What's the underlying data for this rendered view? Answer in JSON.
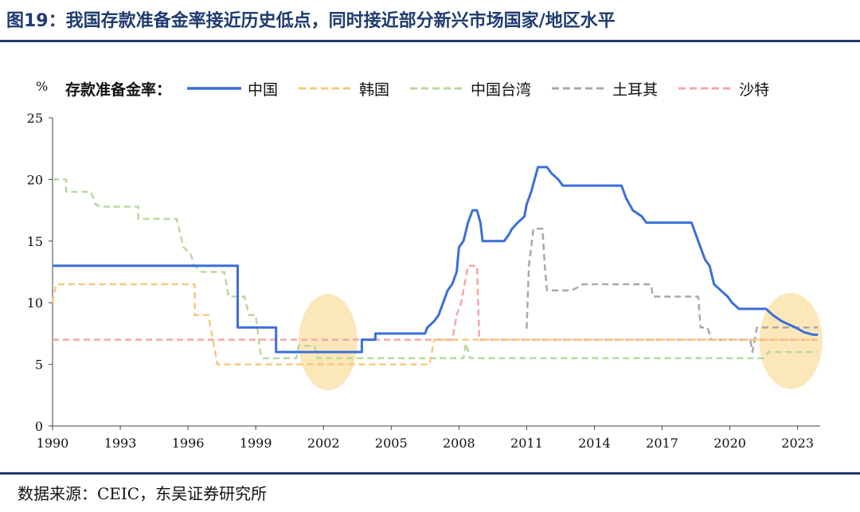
{
  "header": {
    "title": "图19：我国存款准备金率接近历史低点，同时接近部分新兴市场国家/地区水平"
  },
  "footer": {
    "source": "数据来源：CEIC，东吴证券研究所"
  },
  "chart_data": {
    "type": "line",
    "ylabel": "%",
    "legend_prefix": "存款准备金率：",
    "legend_placement": "top",
    "xlim": [
      1990,
      2024
    ],
    "ylim": [
      0,
      25
    ],
    "x_ticks": [
      "1990",
      "1993",
      "1996",
      "1999",
      "2002",
      "2005",
      "2008",
      "2011",
      "2014",
      "2017",
      "2020",
      "2023"
    ],
    "y_ticks": [
      "0",
      "5",
      "10",
      "15",
      "20",
      "25"
    ],
    "grid": false,
    "highlights": [
      {
        "x_center": 2002.2,
        "y_center": 6.8,
        "x_radius": 1.3,
        "y_radius": 3.9,
        "color": "#fbe3ad"
      },
      {
        "x_center": 2022.7,
        "y_center": 6.9,
        "x_radius": 1.4,
        "y_radius": 3.9,
        "color": "#fbe3ad"
      }
    ],
    "series": [
      {
        "name": "中国",
        "color": "#3a6fdc",
        "style": "solid",
        "points": [
          [
            1990.0,
            13.0
          ],
          [
            1998.2,
            13.0
          ],
          [
            1998.2,
            8.0
          ],
          [
            1999.9,
            8.0
          ],
          [
            1999.9,
            6.0
          ],
          [
            2003.7,
            6.0
          ],
          [
            2003.7,
            7.0
          ],
          [
            2004.3,
            7.0
          ],
          [
            2004.3,
            7.5
          ],
          [
            2006.5,
            7.5
          ],
          [
            2006.6,
            8.0
          ],
          [
            2006.9,
            8.5
          ],
          [
            2007.1,
            9.0
          ],
          [
            2007.3,
            10.0
          ],
          [
            2007.5,
            11.0
          ],
          [
            2007.7,
            11.5
          ],
          [
            2007.9,
            12.5
          ],
          [
            2008.0,
            14.5
          ],
          [
            2008.2,
            15.0
          ],
          [
            2008.4,
            16.5
          ],
          [
            2008.6,
            17.5
          ],
          [
            2008.8,
            17.5
          ],
          [
            2008.95,
            16.5
          ],
          [
            2009.05,
            15.0
          ],
          [
            2010.0,
            15.0
          ],
          [
            2010.2,
            15.5
          ],
          [
            2010.35,
            16.0
          ],
          [
            2010.6,
            16.5
          ],
          [
            2010.9,
            17.0
          ],
          [
            2011.0,
            18.0
          ],
          [
            2011.2,
            19.0
          ],
          [
            2011.35,
            20.0
          ],
          [
            2011.5,
            21.0
          ],
          [
            2011.9,
            21.0
          ],
          [
            2012.1,
            20.5
          ],
          [
            2012.4,
            20.0
          ],
          [
            2012.6,
            19.5
          ],
          [
            2015.2,
            19.5
          ],
          [
            2015.4,
            18.5
          ],
          [
            2015.7,
            17.5
          ],
          [
            2016.1,
            17.0
          ],
          [
            2016.3,
            16.5
          ],
          [
            2018.3,
            16.5
          ],
          [
            2018.5,
            15.5
          ],
          [
            2018.7,
            14.5
          ],
          [
            2018.9,
            13.5
          ],
          [
            2019.1,
            13.0
          ],
          [
            2019.3,
            11.5
          ],
          [
            2019.6,
            11.0
          ],
          [
            2019.9,
            10.5
          ],
          [
            2020.1,
            10.0
          ],
          [
            2020.4,
            9.5
          ],
          [
            2021.6,
            9.5
          ],
          [
            2021.9,
            9.0
          ],
          [
            2022.3,
            8.5
          ],
          [
            2022.9,
            8.0
          ],
          [
            2023.3,
            7.6
          ],
          [
            2023.7,
            7.4
          ],
          [
            2023.9,
            7.4
          ]
        ]
      },
      {
        "name": "韩国",
        "color": "#f7c97a",
        "style": "dashed",
        "points": [
          [
            1990.0,
            10.0
          ],
          [
            1990.15,
            11.5
          ],
          [
            1996.3,
            11.5
          ],
          [
            1996.3,
            9.0
          ],
          [
            1996.9,
            9.0
          ],
          [
            1997.1,
            7.0
          ],
          [
            1997.3,
            5.0
          ],
          [
            2006.7,
            5.0
          ],
          [
            2006.9,
            7.0
          ],
          [
            2023.9,
            7.0
          ]
        ]
      },
      {
        "name": "中国台湾",
        "color": "#b9d99d",
        "style": "dashed",
        "points": [
          [
            1990.0,
            20.0
          ],
          [
            1990.6,
            20.0
          ],
          [
            1990.6,
            19.0
          ],
          [
            1991.7,
            19.0
          ],
          [
            1991.9,
            18.0
          ],
          [
            1992.1,
            17.8
          ],
          [
            1993.8,
            17.8
          ],
          [
            1993.8,
            16.8
          ],
          [
            1995.5,
            16.8
          ],
          [
            1995.8,
            14.5
          ],
          [
            1996.1,
            14.0
          ],
          [
            1996.3,
            13.0
          ],
          [
            1996.6,
            12.5
          ],
          [
            1997.6,
            12.5
          ],
          [
            1997.8,
            10.5
          ],
          [
            1998.5,
            10.5
          ],
          [
            1998.7,
            9.0
          ],
          [
            1999.0,
            9.0
          ],
          [
            1999.2,
            6.0
          ],
          [
            1999.3,
            5.5
          ],
          [
            2000.8,
            5.5
          ],
          [
            2000.9,
            6.5
          ],
          [
            2001.6,
            6.5
          ],
          [
            2001.75,
            5.5
          ],
          [
            2008.2,
            5.5
          ],
          [
            2008.3,
            6.7
          ],
          [
            2008.5,
            5.5
          ],
          [
            2021.5,
            5.5
          ],
          [
            2021.7,
            6.0
          ],
          [
            2023.9,
            6.0
          ]
        ]
      },
      {
        "name": "土耳其",
        "color": "#a9a9a9",
        "style": "dashed",
        "points": [
          [
            2011.0,
            7.9
          ],
          [
            2011.1,
            13.0
          ],
          [
            2011.3,
            16.0
          ],
          [
            2011.7,
            16.0
          ],
          [
            2011.8,
            13.0
          ],
          [
            2011.9,
            11.0
          ],
          [
            2013.0,
            11.0
          ],
          [
            2013.5,
            11.5
          ],
          [
            2016.5,
            11.5
          ],
          [
            2016.6,
            10.5
          ],
          [
            2018.6,
            10.5
          ],
          [
            2018.7,
            8.0
          ],
          [
            2019.0,
            8.0
          ],
          [
            2019.2,
            7.0
          ],
          [
            2020.9,
            7.0
          ],
          [
            2021.0,
            6.0
          ],
          [
            2021.2,
            8.0
          ],
          [
            2023.9,
            8.0
          ]
        ]
      },
      {
        "name": "沙特",
        "color": "#f4a7a7",
        "style": "dashed",
        "points": [
          [
            1990.0,
            7.0
          ],
          [
            2007.7,
            7.0
          ],
          [
            2007.9,
            9.0
          ],
          [
            2008.1,
            10.0
          ],
          [
            2008.4,
            13.0
          ],
          [
            2008.8,
            13.0
          ],
          [
            2008.9,
            7.0
          ],
          [
            2023.9,
            7.0
          ]
        ]
      }
    ]
  }
}
